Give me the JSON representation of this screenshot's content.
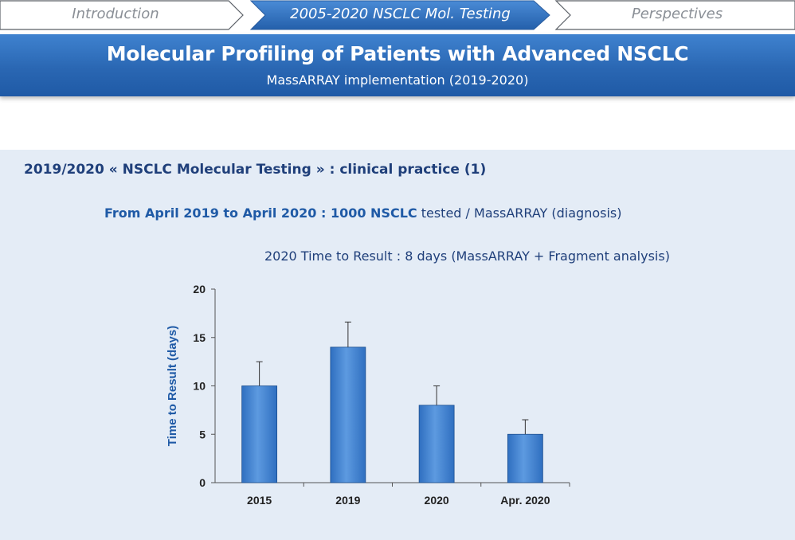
{
  "nav": {
    "steps": [
      {
        "label": "Introduction",
        "state": "inactive"
      },
      {
        "label": "2005-2020 NSCLC Mol. Testing",
        "state": "active"
      },
      {
        "label": "Perspectives",
        "state": "inactive"
      }
    ]
  },
  "banner": {
    "title": "Molecular Profiling of Patients with Advanced NSCLC",
    "subtitle": "MassARRAY implementation (2019-2020)"
  },
  "content": {
    "section_title": "2019/2020 « NSCLC Molecular Testing » : clinical practice (1)",
    "line1_bold": "From April 2019 to April 2020 : 1000 NSCLC",
    "line1_rest": " tested / MassARRAY (diagnosis)",
    "line2": "2020 Time to Result : 8 days (MassARRAY + Fragment analysis)"
  },
  "colors": {
    "accent": "#2a67b3",
    "bar_top": "#5d9ae0",
    "bar_bottom": "#2f6fc0",
    "axis_label": "#1f5aa6",
    "panel_bg": "#e4ecf6"
  },
  "chart_data": {
    "type": "bar",
    "title": "",
    "xlabel": "",
    "ylabel": "Time to Result (days)",
    "ylim": [
      0,
      20
    ],
    "yticks": [
      0,
      5,
      10,
      15,
      20
    ],
    "categories": [
      "2015",
      "2019",
      "2020",
      "Apr. 2020"
    ],
    "values": [
      10,
      14,
      8,
      5
    ],
    "error_bars": [
      2.5,
      2.6,
      2.0,
      1.5
    ],
    "grid": false,
    "legend": "none"
  }
}
